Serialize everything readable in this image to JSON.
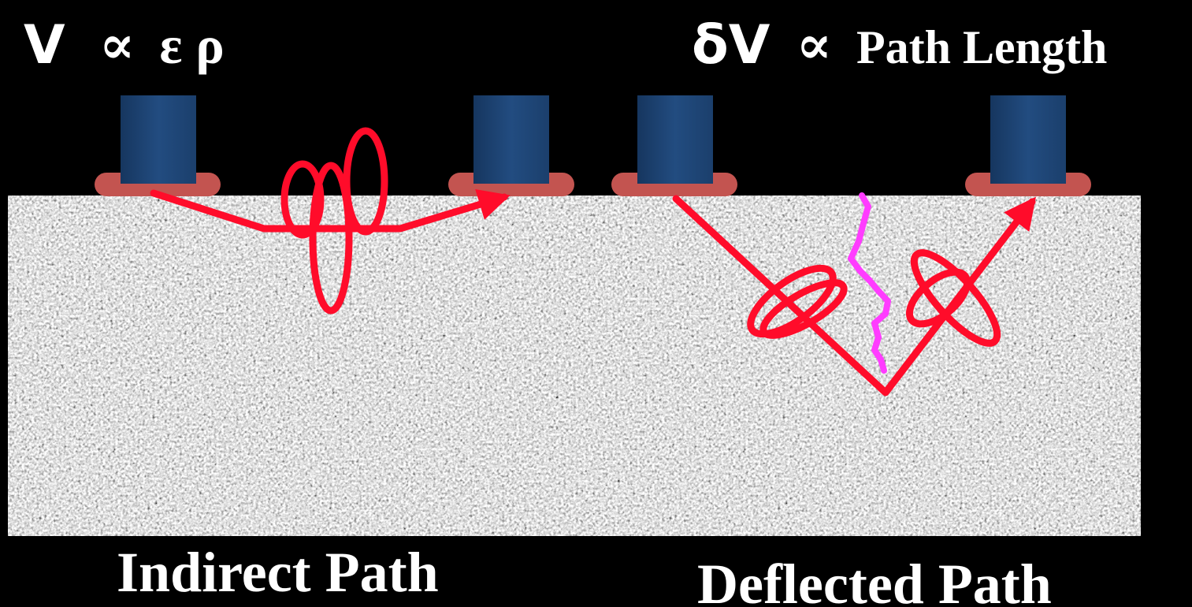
{
  "equations": {
    "left": {
      "variable": "V",
      "symbol": "∝",
      "terms": "ε ρ"
    },
    "right": {
      "variable": "δV",
      "symbol": "∝",
      "terms": "Path Length"
    }
  },
  "captions": {
    "left": "Indirect Path",
    "right": "Deflected Path"
  },
  "colors": {
    "background": "#000000",
    "transducer_body": "#1f4678",
    "transducer_base": "#c35450",
    "wave_path": "#ff0c2a",
    "crack": "#ff3cff",
    "material": "#a0a0a0"
  }
}
